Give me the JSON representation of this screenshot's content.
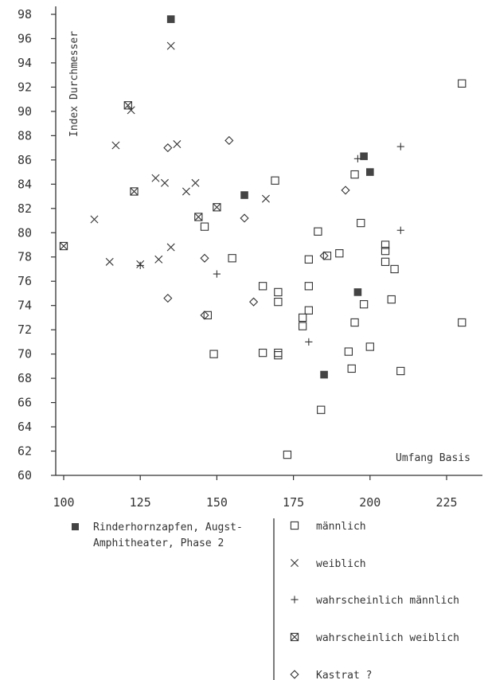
{
  "chart_data": {
    "type": "scatter",
    "title": "",
    "xlabel": "Umfang Basis",
    "ylabel": "Index Durchmesser",
    "xlim": [
      100,
      235
    ],
    "ylim": [
      60,
      98
    ],
    "xticks": [
      100,
      125,
      150,
      175,
      200,
      225
    ],
    "yticks": [
      60,
      62,
      64,
      66,
      68,
      70,
      72,
      74,
      76,
      78,
      80,
      82,
      84,
      86,
      88,
      90,
      92,
      94,
      96,
      98
    ],
    "grid": false,
    "legend_position": "bottom",
    "series": [
      {
        "name": "Rinderhornzapfen, Augst-Amphitheater, Phase 2",
        "marker": "filled-square",
        "points": [
          [
            135,
            97.6
          ],
          [
            159,
            83.1
          ],
          [
            196,
            75.1
          ],
          [
            198,
            86.3
          ],
          [
            200,
            85.0
          ],
          [
            185,
            68.3
          ]
        ]
      },
      {
        "name": "männlich",
        "marker": "open-square",
        "points": [
          [
            146,
            80.5
          ],
          [
            147,
            73.2
          ],
          [
            149,
            70.0
          ],
          [
            155,
            77.9
          ],
          [
            165,
            70.1
          ],
          [
            165,
            75.6
          ],
          [
            169,
            84.3
          ],
          [
            170,
            75.1
          ],
          [
            170,
            74.3
          ],
          [
            170,
            70.1
          ],
          [
            170,
            69.9
          ],
          [
            173,
            61.7
          ],
          [
            178,
            73.0
          ],
          [
            178,
            72.3
          ],
          [
            180,
            77.8
          ],
          [
            180,
            75.6
          ],
          [
            180,
            73.6
          ],
          [
            183,
            80.1
          ],
          [
            184,
            65.4
          ],
          [
            186,
            78.1
          ],
          [
            190,
            78.3
          ],
          [
            193,
            70.2
          ],
          [
            194,
            68.8
          ],
          [
            195,
            84.8
          ],
          [
            195,
            72.6
          ],
          [
            197,
            80.8
          ],
          [
            198,
            74.1
          ],
          [
            200,
            70.6
          ],
          [
            205,
            79.0
          ],
          [
            205,
            78.5
          ],
          [
            205,
            77.6
          ],
          [
            207,
            74.5
          ],
          [
            208,
            77.0
          ],
          [
            210,
            68.6
          ],
          [
            230,
            92.3
          ],
          [
            230,
            72.6
          ]
        ]
      },
      {
        "name": "weiblich",
        "marker": "x",
        "points": [
          [
            110,
            81.1
          ],
          [
            115,
            77.6
          ],
          [
            117,
            87.2
          ],
          [
            122,
            90.1
          ],
          [
            125,
            77.4
          ],
          [
            130,
            84.5
          ],
          [
            131,
            77.8
          ],
          [
            133,
            84.1
          ],
          [
            135,
            95.4
          ],
          [
            135,
            78.8
          ],
          [
            137,
            87.3
          ],
          [
            140,
            83.4
          ],
          [
            143,
            84.1
          ],
          [
            166,
            82.8
          ]
        ]
      },
      {
        "name": "wahrscheinlich männlich",
        "marker": "plus",
        "points": [
          [
            125,
            77.3
          ],
          [
            150,
            76.6
          ],
          [
            180,
            71.0
          ],
          [
            196,
            86.1
          ],
          [
            210,
            87.1
          ],
          [
            210,
            80.2
          ]
        ]
      },
      {
        "name": "wahrscheinlich weiblich",
        "marker": "boxed-x",
        "points": [
          [
            100,
            78.9
          ],
          [
            121,
            90.5
          ],
          [
            123,
            83.4
          ],
          [
            144,
            81.3
          ],
          [
            150,
            82.1
          ]
        ]
      },
      {
        "name": "Kastrat ?",
        "marker": "diamond",
        "points": [
          [
            134,
            87.0
          ],
          [
            134,
            74.6
          ],
          [
            146,
            77.9
          ],
          [
            146,
            73.2
          ],
          [
            154,
            87.6
          ],
          [
            159,
            81.2
          ],
          [
            162,
            74.3
          ],
          [
            185,
            78.1
          ],
          [
            192,
            83.5
          ]
        ]
      }
    ]
  },
  "legend": {
    "phase2_line1": "Rinderhornzapfen, Augst-",
    "phase2_line2": "Amphitheater, Phase 2",
    "items": [
      {
        "label": "männlich"
      },
      {
        "label": "weiblich"
      },
      {
        "label": "wahrscheinlich männlich"
      },
      {
        "label": "wahrscheinlich weiblich"
      },
      {
        "label": "Kastrat ?"
      }
    ]
  },
  "colors": {
    "ink": "#333333",
    "filled_marker": "#444444"
  }
}
